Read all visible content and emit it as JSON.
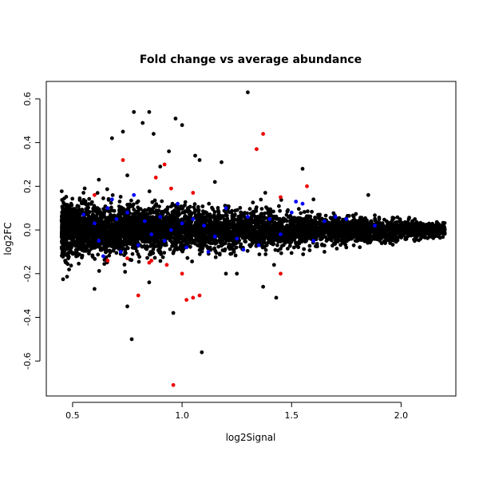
{
  "chart_data": {
    "type": "scatter",
    "title": "Fold change vs average abundance",
    "xlabel": "log2Signal",
    "ylabel": "log2FC",
    "xlim": [
      0.38,
      2.25
    ],
    "ylim": [
      -0.76,
      0.68
    ],
    "x_ticks": [
      0.5,
      1.0,
      1.5,
      2.0
    ],
    "x_tick_labels": [
      "0.5",
      "1.0",
      "1.5",
      "2.0"
    ],
    "y_ticks": [
      -0.6,
      -0.4,
      -0.2,
      0.0,
      0.2,
      0.4,
      0.6
    ],
    "y_tick_labels": [
      "-0.6",
      "-0.4",
      "-0.2",
      "0.0",
      "0.2",
      "0.4",
      "0.6"
    ],
    "grid": false,
    "legend": "none",
    "colors": {
      "black": "#000000",
      "blue": "#0000ff",
      "red": "#ee0000"
    },
    "density_band": {
      "description_note": "dense cloud of black points centered on zero",
      "x_range": [
        0.45,
        2.2
      ]
    },
    "series": [
      {
        "color": "#000000",
        "outliers": [
          [
            0.78,
            0.54
          ],
          [
            0.85,
            0.54
          ],
          [
            0.82,
            0.49
          ],
          [
            0.97,
            0.51
          ],
          [
            1.0,
            0.48
          ],
          [
            0.68,
            0.42
          ],
          [
            0.73,
            0.45
          ],
          [
            0.87,
            0.44
          ],
          [
            1.3,
            0.63
          ],
          [
            0.94,
            0.36
          ],
          [
            1.06,
            0.34
          ],
          [
            1.08,
            0.32
          ],
          [
            0.9,
            0.29
          ],
          [
            1.18,
            0.31
          ],
          [
            0.62,
            0.23
          ],
          [
            0.75,
            0.25
          ],
          [
            1.55,
            0.28
          ],
          [
            1.85,
            0.16
          ],
          [
            1.6,
            0.14
          ],
          [
            1.38,
            0.17
          ],
          [
            1.15,
            0.22
          ],
          [
            0.55,
            0.17
          ],
          [
            1.42,
            -0.16
          ],
          [
            1.37,
            -0.26
          ],
          [
            1.43,
            -0.31
          ],
          [
            0.75,
            -0.35
          ],
          [
            0.96,
            -0.38
          ],
          [
            0.77,
            -0.5
          ],
          [
            1.09,
            -0.56
          ],
          [
            0.6,
            -0.27
          ],
          [
            0.85,
            -0.24
          ],
          [
            1.2,
            -0.2
          ],
          [
            1.25,
            -0.2
          ],
          [
            1.65,
            -0.1
          ],
          [
            1.75,
            -0.08
          ],
          [
            1.95,
            -0.06
          ],
          [
            2.1,
            -0.03
          ],
          [
            2.15,
            0.02
          ],
          [
            1.9,
            0.05
          ]
        ]
      },
      {
        "color": "#0000ff",
        "points": [
          [
            0.55,
            0.07
          ],
          [
            0.6,
            0.03
          ],
          [
            0.62,
            -0.05
          ],
          [
            0.66,
            0.1
          ],
          [
            0.7,
            0.05
          ],
          [
            0.72,
            -0.1
          ],
          [
            0.75,
            0.08
          ],
          [
            0.8,
            -0.07
          ],
          [
            0.83,
            0.04
          ],
          [
            0.86,
            -0.02
          ],
          [
            0.9,
            0.06
          ],
          [
            0.92,
            -0.05
          ],
          [
            0.95,
            0.0
          ],
          [
            1.0,
            0.03
          ],
          [
            1.02,
            -0.08
          ],
          [
            1.05,
            0.05
          ],
          [
            1.1,
            0.02
          ],
          [
            1.15,
            -0.03
          ],
          [
            1.2,
            0.1
          ],
          [
            1.25,
            -0.04
          ],
          [
            1.3,
            0.06
          ],
          [
            1.35,
            -0.07
          ],
          [
            1.4,
            0.05
          ],
          [
            1.45,
            -0.02
          ],
          [
            1.5,
            0.08
          ],
          [
            1.55,
            0.12
          ],
          [
            1.6,
            -0.05
          ],
          [
            1.65,
            0.04
          ],
          [
            1.7,
            0.06
          ],
          [
            1.75,
            0.05
          ],
          [
            1.88,
            0.02
          ],
          [
            0.68,
            0.14
          ],
          [
            0.98,
            0.12
          ],
          [
            1.12,
            -0.1
          ],
          [
            1.28,
            -0.09
          ],
          [
            0.78,
            0.16
          ],
          [
            1.52,
            0.13
          ],
          [
            0.64,
            -0.12
          ]
        ]
      },
      {
        "color": "#ee0000",
        "points": [
          [
            1.37,
            0.44
          ],
          [
            1.34,
            0.37
          ],
          [
            0.73,
            0.32
          ],
          [
            0.92,
            0.3
          ],
          [
            0.88,
            0.24
          ],
          [
            1.57,
            0.2
          ],
          [
            1.45,
            0.15
          ],
          [
            1.05,
            0.17
          ],
          [
            0.6,
            0.16
          ],
          [
            0.95,
            0.19
          ],
          [
            1.45,
            -0.2
          ],
          [
            1.02,
            -0.32
          ],
          [
            1.05,
            -0.31
          ],
          [
            1.08,
            -0.3
          ],
          [
            0.8,
            -0.3
          ],
          [
            0.96,
            -0.71
          ],
          [
            0.86,
            -0.14
          ],
          [
            0.85,
            -0.15
          ],
          [
            0.93,
            -0.16
          ],
          [
            0.75,
            -0.13
          ],
          [
            0.66,
            -0.14
          ],
          [
            1.0,
            -0.2
          ]
        ]
      }
    ]
  }
}
